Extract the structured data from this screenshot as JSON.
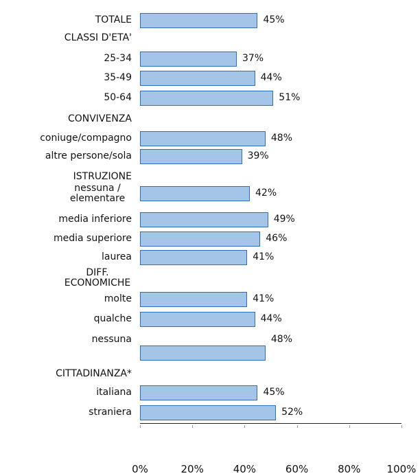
{
  "chart_data": {
    "type": "bar",
    "orientation": "horizontal",
    "color": "#a4c4e8",
    "categories": [
      "TOTALE",
      "CLASSI D'ETA'",
      "25-34",
      "35-49",
      "50-64",
      "CONVIVENZA",
      "coniuge/compagno",
      "altre persone/sola",
      "ISTRUZIONE",
      "nessuna / elementare",
      "media inferiore",
      "media superiore",
      "laurea",
      "DIFF. ECONOMICHE",
      "molte",
      "qualche",
      "nessuna",
      "CITTADINANZA*",
      "italiana",
      "straniera"
    ],
    "values": [
      45,
      null,
      37,
      44,
      51,
      null,
      48,
      39,
      null,
      42,
      49,
      46,
      41,
      null,
      41,
      44,
      48,
      null,
      45,
      52
    ],
    "value_labels": [
      "45%",
      null,
      "37%",
      "44%",
      "51%",
      null,
      "48%",
      "39%",
      null,
      "42%",
      "49%",
      "46%",
      "41%",
      null,
      "41%",
      "44%",
      "48%",
      null,
      "45%",
      "52%"
    ],
    "xlim": [
      0,
      100
    ],
    "xticks": [
      {
        "value": 0,
        "label": "0%"
      },
      {
        "value": 20,
        "label": "20%"
      },
      {
        "value": 40,
        "label": "40%"
      },
      {
        "value": 60,
        "label": "60%"
      },
      {
        "value": 80,
        "label": "80%"
      },
      {
        "value": 100,
        "label": "100%"
      }
    ]
  }
}
